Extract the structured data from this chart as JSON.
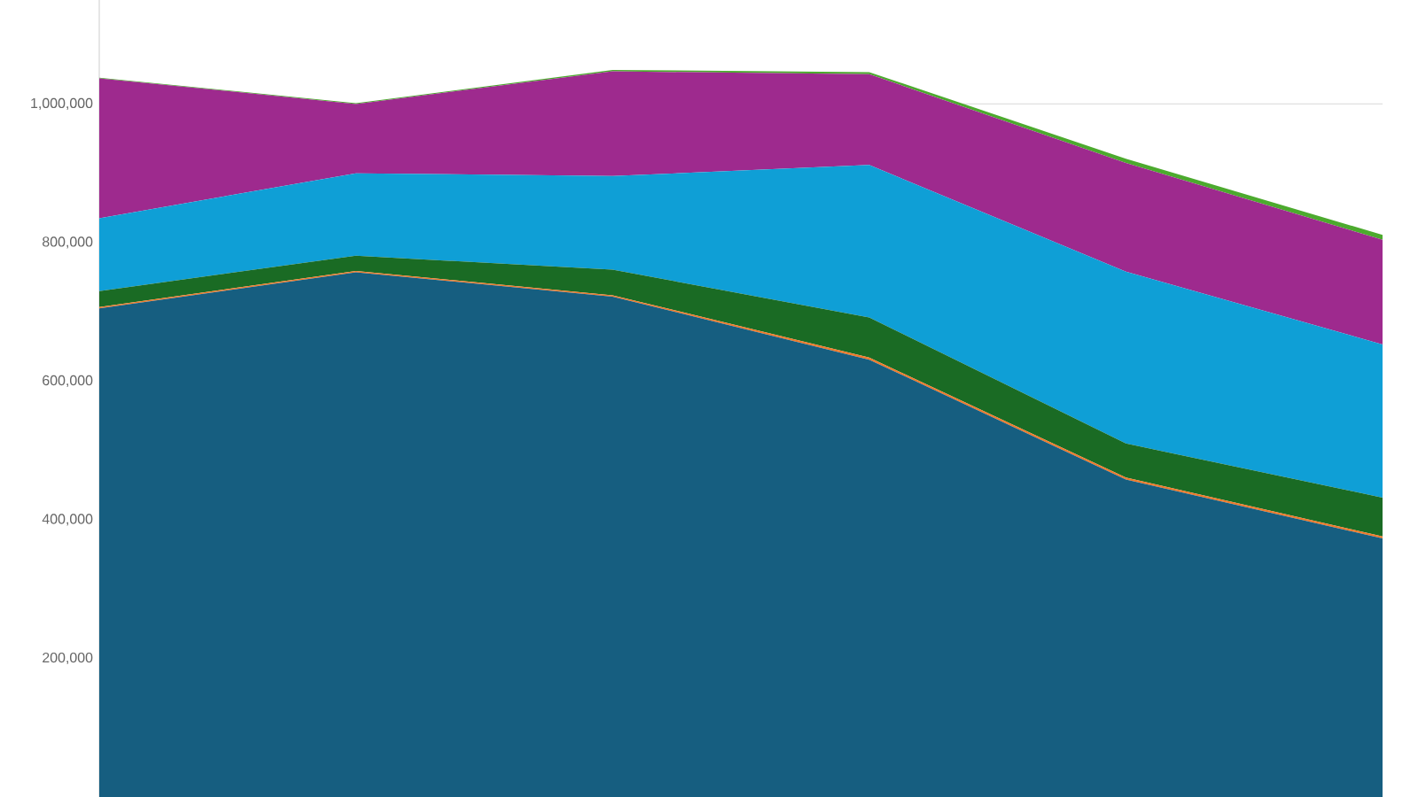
{
  "chart_data": {
    "type": "area",
    "stacked": true,
    "categories": [
      null,
      null,
      null,
      null,
      null,
      null
    ],
    "ylim": [
      0,
      1150000
    ],
    "yticks": [
      {
        "value": 200000,
        "label": "200,000"
      },
      {
        "value": 400000,
        "label": "400,000"
      },
      {
        "value": 600000,
        "label": "600,000"
      },
      {
        "value": 800000,
        "label": "800,000"
      },
      {
        "value": 1000000,
        "label": "1,000,000"
      }
    ],
    "grid": "y",
    "series": [
      {
        "color": "#165e80",
        "values": [
          705000,
          757000,
          722000,
          631000,
          458000,
          373000
        ]
      },
      {
        "color": "#f07a2a",
        "values": [
          2000,
          2000,
          2000,
          3000,
          3000,
          3000
        ]
      },
      {
        "color": "#1a6b24",
        "values": [
          23000,
          22000,
          37000,
          58000,
          49000,
          56000
        ]
      },
      {
        "color": "#0f9fd6",
        "values": [
          105000,
          119000,
          135000,
          220000,
          248000,
          221000
        ]
      },
      {
        "color": "#9e2a8e",
        "values": [
          202000,
          100000,
          151000,
          131000,
          157000,
          151000
        ]
      },
      {
        "color": "#4caa2e",
        "values": [
          1000,
          1000,
          2000,
          3000,
          6000,
          7000
        ]
      }
    ]
  }
}
